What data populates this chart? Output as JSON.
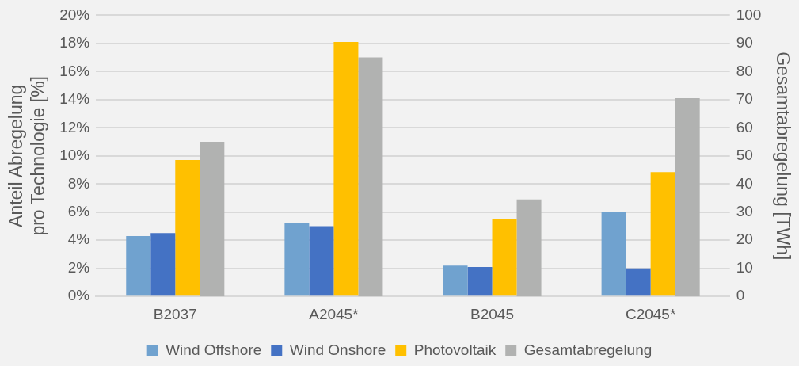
{
  "chart_data": {
    "type": "bar",
    "categories": [
      "B2037",
      "A2045*",
      "B2045",
      "C2045*"
    ],
    "series": [
      {
        "name": "Wind Offshore",
        "color": "#70a2cf",
        "values": [
          4.3,
          5.25,
          2.2,
          6.0
        ]
      },
      {
        "name": "Wind Onshore",
        "color": "#4472c4",
        "values": [
          4.5,
          5.0,
          2.1,
          2.0
        ]
      },
      {
        "name": "Photovoltaik",
        "color": "#ffc000",
        "values": [
          9.7,
          18.1,
          5.5,
          8.85
        ]
      },
      {
        "name": "Gesamtabregelung",
        "color": "#b1b2b1",
        "values": [
          55,
          85,
          34.5,
          70.5
        ],
        "axis": "y2"
      }
    ],
    "ylabel": "Anteil Abregelung\npro Technologie [%]",
    "y2label": "Gesamtabregelung [TWh]",
    "ylim": [
      0,
      20
    ],
    "yticks": [
      {
        "value": 0,
        "label": "0%"
      },
      {
        "value": 2,
        "label": "2%"
      },
      {
        "value": 4,
        "label": "4%"
      },
      {
        "value": 6,
        "label": "6%"
      },
      {
        "value": 8,
        "label": "8%"
      },
      {
        "value": 10,
        "label": "10%"
      },
      {
        "value": 12,
        "label": "12%"
      },
      {
        "value": 14,
        "label": "14%"
      },
      {
        "value": 16,
        "label": "16%"
      },
      {
        "value": 18,
        "label": "18%"
      },
      {
        "value": 20,
        "label": "20%"
      }
    ],
    "y2lim": [
      0,
      100
    ],
    "y2ticks": [
      0,
      10,
      20,
      30,
      40,
      50,
      60,
      70,
      80,
      90,
      100
    ],
    "grid": "y",
    "legend": "bottom"
  }
}
